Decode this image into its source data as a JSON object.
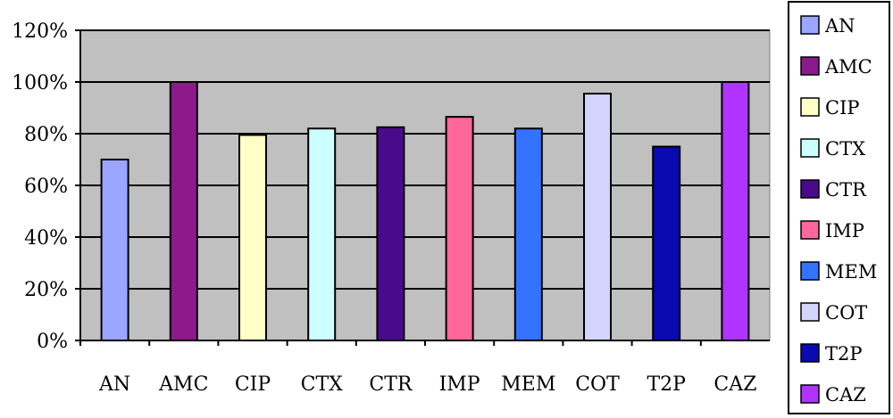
{
  "chart_data": {
    "type": "bar",
    "categories": [
      "AN",
      "AMC",
      "CIP",
      "CTX",
      "CTR",
      "IMP",
      "MEM",
      "COT",
      "T2P",
      "CAZ"
    ],
    "values": [
      70,
      100,
      79.5,
      82,
      82.5,
      86.5,
      82,
      95.5,
      75,
      100
    ],
    "colors": [
      "#9aa6ff",
      "#8c1a8c",
      "#ffffc8",
      "#ccffff",
      "#4a0a8c",
      "#ff6699",
      "#3373ff",
      "#d4d4ff",
      "#0a0ab0",
      "#b033ff"
    ],
    "ylim": [
      0,
      120
    ],
    "yticks": [
      0,
      20,
      40,
      60,
      80,
      100,
      120
    ],
    "ytick_format": "percent",
    "grid": true,
    "plot_background": "#c0c0c0",
    "legend": {
      "position": "right",
      "entries": [
        "AN",
        "AMC",
        "CIP",
        "CTX",
        "CTR",
        "IMP",
        "MEM",
        "COT",
        "T2P",
        "CAZ"
      ]
    }
  }
}
